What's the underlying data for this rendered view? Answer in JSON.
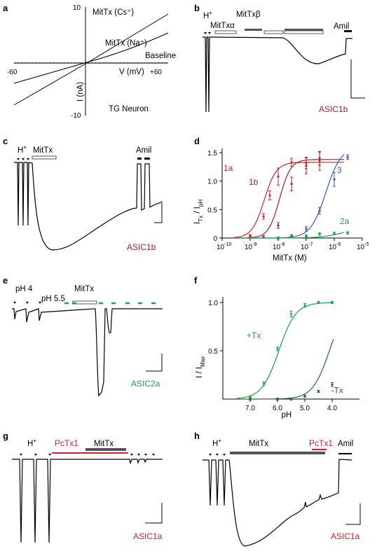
{
  "colors": {
    "asic1a": "#d22027",
    "asic1b": "#a01e2d",
    "asic3": "#3d5aa8",
    "asic2a": "#1aa24a",
    "ph_dots": "#1aa24a",
    "trace": "#000000",
    "bar_dark": "#555555",
    "pctx_bar": "#d22027"
  },
  "panel_labels": {
    "a": "a",
    "b": "b",
    "c": "c",
    "d": "d",
    "e": "e",
    "f": "f",
    "g": "g",
    "h": "h"
  },
  "panel_a": {
    "y_top": "10",
    "y_bottom": "-10",
    "x_left": "-60",
    "x_right": "+60",
    "x_axis_label": "V (mV)",
    "y_axis_label": "I (nA)",
    "curve_cs": "MitTx (Cs⁺)",
    "curve_na": "MitTx (Na⁺)",
    "baseline": "Baseline",
    "cell": "TG Neuron"
  },
  "panel_b": {
    "h_label": "H",
    "h_sup": "+",
    "bar1": "MitTxα",
    "bar2": "MitTxβ",
    "amil": "Amil",
    "channel": "ASIC1b"
  },
  "panel_c": {
    "h_label": "H",
    "h_sup": "+",
    "mittx": "MitTx",
    "amil": "Amil",
    "channel": "ASIC1b"
  },
  "panel_e": {
    "ph4": "pH 4",
    "ph55": "pH 5.5",
    "mittx": "MitTx",
    "channel": "ASIC2a"
  },
  "panel_g": {
    "h_label": "H",
    "h_sup": "+",
    "pctx": "PcTx1",
    "mittx": "MitTx",
    "channel": "ASIC1a"
  },
  "panel_h": {
    "h_label": "H",
    "h_sup": "+",
    "mittx": "MitTx",
    "pctx": "PcTx1",
    "amil": "Amil",
    "channel": "ASIC1a"
  },
  "chart_data": [
    {
      "panel": "d",
      "type": "scatter",
      "xlabel": "MitTx (M)",
      "ylabel_main": "I",
      "ylabel_sub1": "Tx",
      "ylabel_mid": " / I",
      "ylabel_sub2": "pH",
      "xscale": "log",
      "xlim": [
        1e-10,
        1e-05
      ],
      "ylim": [
        0,
        1.5
      ],
      "xticks": [
        {
          "v": -10,
          "label": "10",
          "exp": "-10"
        },
        {
          "v": -9,
          "label": "10",
          "exp": "-9"
        },
        {
          "v": -8,
          "label": "10",
          "exp": "-8"
        },
        {
          "v": -7,
          "label": "10",
          "exp": "-7"
        },
        {
          "v": -6,
          "label": "10",
          "exp": "-6"
        },
        {
          "v": -5,
          "label": "10",
          "exp": "-5"
        }
      ],
      "yticks": [
        {
          "v": 0,
          "label": "0"
        },
        {
          "v": 0.5,
          "label": "0.5"
        },
        {
          "v": 1.0,
          "label": "1.0"
        },
        {
          "v": 1.5,
          "label": "1.5"
        }
      ],
      "series": [
        {
          "name": "1a",
          "color": "#d22027",
          "ec50_log": -8.5,
          "hill": 2.0,
          "top": 1.33,
          "points": [
            {
              "x": 1e-09,
              "y": 0.04,
              "e": 0.02
            },
            {
              "x": 3e-09,
              "y": 0.38,
              "e": 0.05
            },
            {
              "x": 5e-09,
              "y": 0.75,
              "e": 0.08
            },
            {
              "x": 1e-08,
              "y": 1.08,
              "e": 0.15
            },
            {
              "x": 3e-08,
              "y": 1.33,
              "e": 0.07
            },
            {
              "x": 1e-07,
              "y": 1.32,
              "e": 0.1
            },
            {
              "x": 3e-07,
              "y": 1.35,
              "e": 0.16
            }
          ]
        },
        {
          "name": "1b",
          "color": "#a01e2d",
          "ec50_log": -7.95,
          "hill": 2.2,
          "top": 1.38,
          "points": [
            {
              "x": 3e-09,
              "y": 0.02,
              "e": 0.02
            },
            {
              "x": 1e-08,
              "y": 0.22,
              "e": 0.05
            },
            {
              "x": 3e-08,
              "y": 0.95,
              "e": 0.12
            },
            {
              "x": 1e-07,
              "y": 1.27,
              "e": 0.14
            },
            {
              "x": 3e-07,
              "y": 1.4,
              "e": 0.12
            }
          ]
        },
        {
          "name": "3",
          "color": "#3d5aa8",
          "ec50_log": -6.3,
          "hill": 1.6,
          "top": 1.6,
          "points": [
            {
              "x": 3e-08,
              "y": 0.04,
              "e": 0.02
            },
            {
              "x": 1e-07,
              "y": 0.16,
              "e": 0.04
            },
            {
              "x": 3e-07,
              "y": 0.48,
              "e": 0.06
            },
            {
              "x": 1e-06,
              "y": 1.03,
              "e": 0.12
            },
            {
              "x": 3e-06,
              "y": 1.42,
              "e": 0.04
            }
          ]
        },
        {
          "name": "2a",
          "color": "#1aa24a",
          "ec50_log": -5.5,
          "hill": 1.0,
          "top": 0.24,
          "points": [
            {
              "x": 1e-08,
              "y": 0.0,
              "e": 0.01
            },
            {
              "x": 3e-08,
              "y": 0.02,
              "e": 0.01
            },
            {
              "x": 1e-07,
              "y": 0.04,
              "e": 0.01
            },
            {
              "x": 3e-07,
              "y": 0.07,
              "e": 0.02
            },
            {
              "x": 1e-06,
              "y": 0.08,
              "e": 0.02
            },
            {
              "x": 3e-06,
              "y": 0.09,
              "e": 0.02
            }
          ]
        }
      ]
    },
    {
      "panel": "f",
      "type": "scatter",
      "xlabel": "pH",
      "ylabel_main": "I / I",
      "ylabel_sub": "Max",
      "xlim": [
        8.0,
        3.0
      ],
      "ylim": [
        0,
        1.0
      ],
      "xticks": [
        {
          "v": 7.0,
          "label": "7.0"
        },
        {
          "v": 6.0,
          "label": "6.0"
        },
        {
          "v": 5.0,
          "label": "5.0"
        },
        {
          "v": 4.0,
          "label": "4.0"
        }
      ],
      "yticks": [
        {
          "v": 0.5,
          "label": "0.5"
        },
        {
          "v": 1.0,
          "label": "1.0"
        }
      ],
      "series": [
        {
          "name": "+Tx",
          "color": "#1aa24a",
          "pH50": 5.95,
          "n": 1.4,
          "points": [
            {
              "x": 7.0,
              "y": 0.02,
              "e": 0.01
            },
            {
              "x": 6.5,
              "y": 0.16,
              "e": 0.02
            },
            {
              "x": 6.0,
              "y": 0.52,
              "e": 0.02
            },
            {
              "x": 5.5,
              "y": 0.88,
              "e": 0.03
            },
            {
              "x": 5.0,
              "y": 0.97,
              "e": 0.02
            },
            {
              "x": 4.5,
              "y": 1.0,
              "e": 0.01
            },
            {
              "x": 4.0,
              "y": 1.0,
              "e": 0.01
            }
          ]
        },
        {
          "name": "-Tx",
          "color": "#2b6a38",
          "pH50": 4.1,
          "n": 1.4,
          "points": [
            {
              "x": 7.0,
              "y": 0.0,
              "e": 0.005
            },
            {
              "x": 6.0,
              "y": 0.0,
              "e": 0.005
            },
            {
              "x": 5.5,
              "y": 0.0,
              "e": 0.005
            },
            {
              "x": 5.0,
              "y": 0.03,
              "e": 0.01
            },
            {
              "x": 4.5,
              "y": 0.08,
              "e": 0.01
            },
            {
              "x": 4.0,
              "y": 0.15,
              "e": 0.02
            }
          ]
        }
      ]
    }
  ]
}
